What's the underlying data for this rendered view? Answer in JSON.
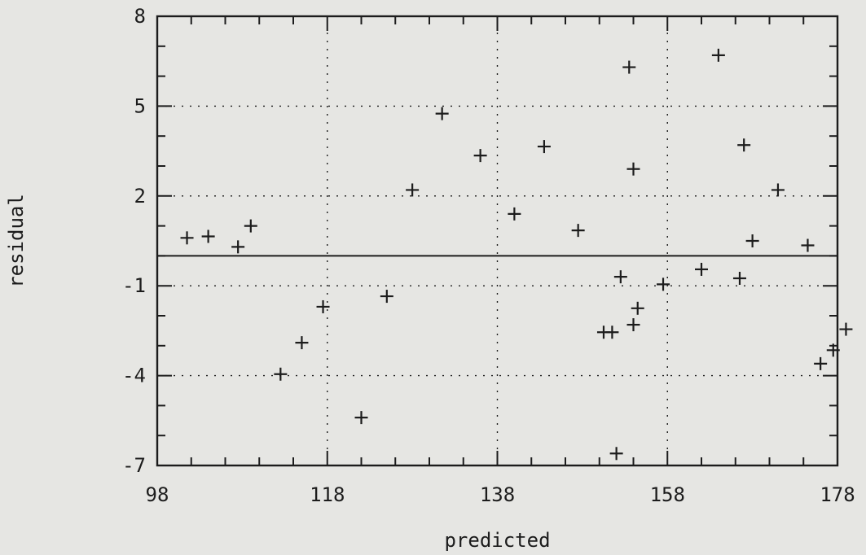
{
  "chart_data": {
    "type": "scatter",
    "title": "",
    "xlabel": "predicted",
    "ylabel": "residual",
    "xlim": [
      98,
      178
    ],
    "ylim": [
      -7,
      8
    ],
    "x_ticks": [
      "98",
      "118",
      "138",
      "158",
      "178"
    ],
    "y_ticks": [
      "8",
      "5",
      "2",
      "-1",
      "-4",
      "-7"
    ],
    "x_ticks_values": [
      98,
      118,
      138,
      158,
      178
    ],
    "y_ticks_values": [
      8,
      5,
      2,
      -1,
      -4,
      -7
    ],
    "grid": true,
    "grid_style": "dotted",
    "reference_line": 0,
    "marker": "plus",
    "series": [
      {
        "points": [
          [
            101.5,
            0.6
          ],
          [
            104.0,
            0.65
          ],
          [
            107.5,
            0.3
          ],
          [
            109.0,
            1.0
          ],
          [
            112.5,
            -3.95
          ],
          [
            115.0,
            -2.9
          ],
          [
            117.5,
            -1.7
          ],
          [
            122.0,
            -5.4
          ],
          [
            125.0,
            -1.35
          ],
          [
            128.0,
            2.2
          ],
          [
            131.5,
            4.75
          ],
          [
            136.0,
            3.35
          ],
          [
            140.0,
            1.4
          ],
          [
            143.5,
            3.65
          ],
          [
            147.5,
            0.85
          ],
          [
            150.5,
            -2.55
          ],
          [
            151.5,
            -2.55
          ],
          [
            152.5,
            -0.7
          ],
          [
            152.0,
            -6.6
          ],
          [
            153.5,
            6.3
          ],
          [
            154.0,
            2.9
          ],
          [
            154.0,
            -2.3
          ],
          [
            154.5,
            -1.75
          ],
          [
            157.5,
            -0.95
          ],
          [
            162.0,
            -0.45
          ],
          [
            164.0,
            6.7
          ],
          [
            166.5,
            -0.75
          ],
          [
            167.0,
            3.7
          ],
          [
            168.0,
            0.5
          ],
          [
            171.0,
            2.2
          ],
          [
            174.5,
            0.35
          ],
          [
            176.0,
            -3.6
          ],
          [
            177.5,
            -3.15
          ],
          [
            179.0,
            -2.45
          ]
        ]
      }
    ]
  }
}
